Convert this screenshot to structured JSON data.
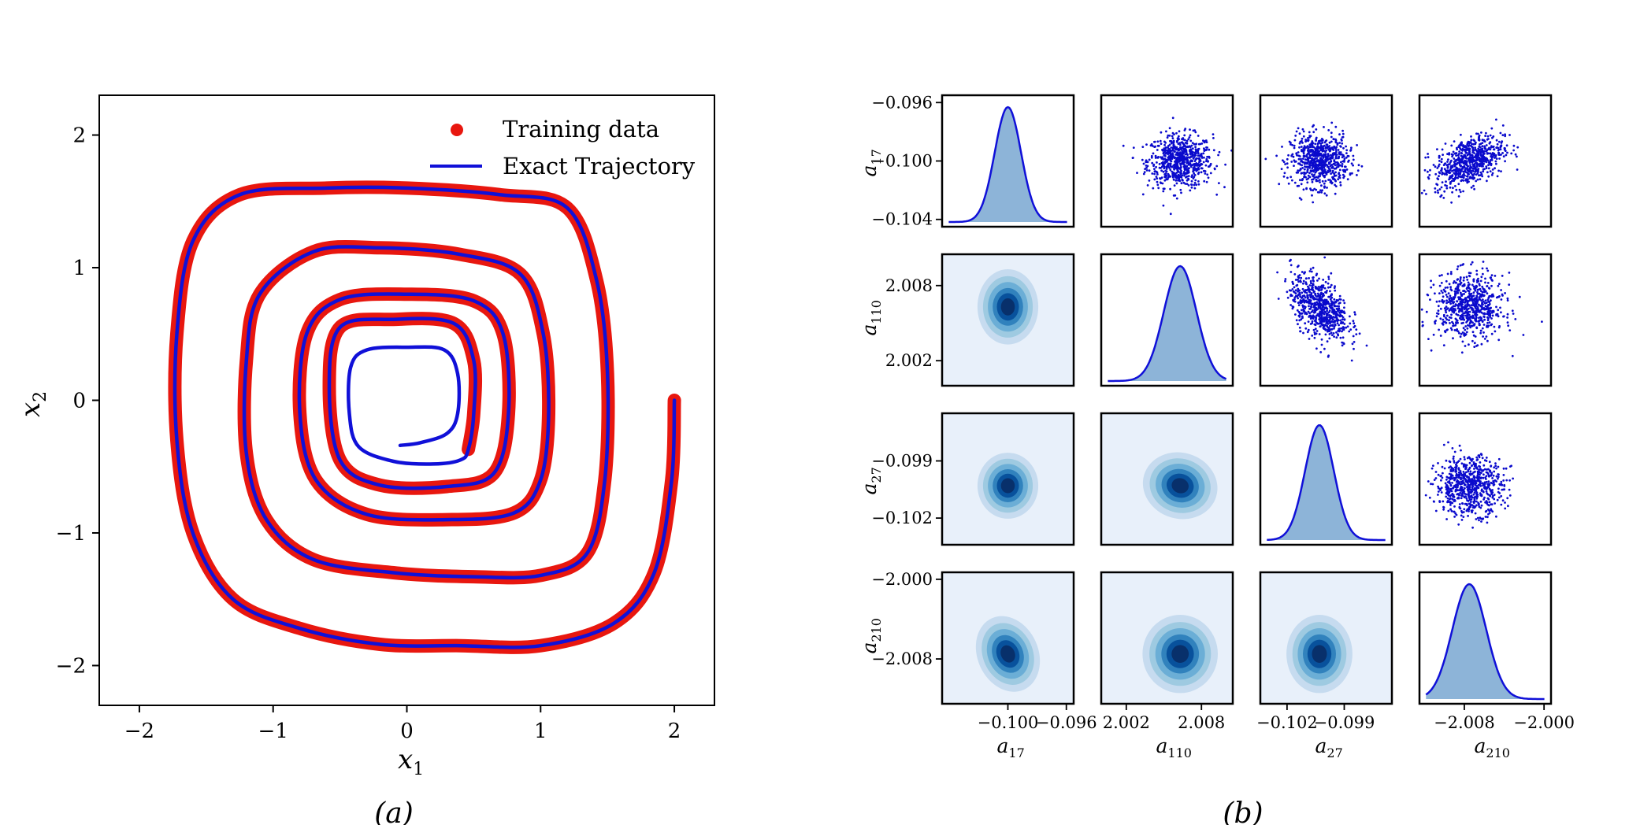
{
  "chart_data": [
    {
      "type": "line",
      "panel_label": "(a)",
      "xlabel": "x1",
      "ylabel": "x2",
      "xlim": [
        -2.3,
        2.3
      ],
      "ylim": [
        -2.3,
        2.3
      ],
      "xticks": [
        "−2",
        "−1",
        "0",
        "1",
        "2"
      ],
      "yticks": [
        "−2",
        "−1",
        "0",
        "1",
        "2"
      ],
      "xtick_values": [
        -2,
        -1,
        0,
        1,
        2
      ],
      "ytick_values": [
        -2,
        -1,
        0,
        1,
        2
      ],
      "legend_position": "top-right",
      "legend": [
        "Training data",
        "Exact Trajectory"
      ],
      "series": [
        {
          "name": "Training data",
          "color": "#e8170f",
          "marker": "circle",
          "note": "dense points along trajectory from t=0 to t≈15",
          "x": [
            2.0,
            1.98,
            1.85,
            1.55,
            1.0,
            0.4,
            -0.2,
            -0.8,
            -1.3,
            -1.6,
            -1.72,
            -1.72,
            -1.6,
            -1.25,
            -0.6,
            0.0,
            0.7,
            1.2,
            1.42,
            1.5,
            1.48,
            1.35,
            1.0,
            0.5,
            -0.1,
            -0.7,
            -1.05,
            -1.2,
            -1.2,
            -1.1,
            -0.7,
            -0.2,
            0.4,
            0.85,
            1.02,
            1.06,
            1.0,
            0.8,
            0.3,
            -0.3,
            -0.68,
            -0.8,
            -0.75,
            -0.5,
            0.0,
            0.5,
            0.72,
            0.76,
            0.65,
            0.3,
            -0.2,
            -0.5,
            -0.58,
            -0.5,
            -0.1,
            0.35,
            0.5,
            0.5,
            0.46
          ],
          "y": [
            0.0,
            -0.6,
            -1.3,
            -1.68,
            -1.85,
            -1.85,
            -1.84,
            -1.72,
            -1.5,
            -1.0,
            -0.3,
            0.5,
            1.2,
            1.55,
            1.6,
            1.6,
            1.55,
            1.45,
            0.9,
            0.2,
            -0.6,
            -1.15,
            -1.32,
            -1.33,
            -1.3,
            -1.2,
            -0.9,
            -0.4,
            0.3,
            0.8,
            1.12,
            1.15,
            1.1,
            0.95,
            0.5,
            -0.1,
            -0.6,
            -0.85,
            -0.9,
            -0.86,
            -0.6,
            -0.1,
            0.5,
            0.76,
            0.8,
            0.75,
            0.5,
            -0.1,
            -0.55,
            -0.65,
            -0.64,
            -0.45,
            0.1,
            0.55,
            0.61,
            0.58,
            0.3,
            -0.1,
            -0.37
          ]
        },
        {
          "name": "Exact Trajectory",
          "color": "#1010d8",
          "x": [
            2.0,
            1.98,
            1.85,
            1.55,
            1.0,
            0.4,
            -0.2,
            -0.8,
            -1.3,
            -1.6,
            -1.72,
            -1.72,
            -1.6,
            -1.25,
            -0.6,
            0.0,
            0.7,
            1.2,
            1.42,
            1.5,
            1.48,
            1.35,
            1.0,
            0.5,
            -0.1,
            -0.7,
            -1.05,
            -1.2,
            -1.2,
            -1.1,
            -0.7,
            -0.2,
            0.4,
            0.85,
            1.02,
            1.06,
            1.0,
            0.8,
            0.3,
            -0.3,
            -0.68,
            -0.8,
            -0.75,
            -0.5,
            0.0,
            0.5,
            0.72,
            0.76,
            0.65,
            0.3,
            -0.2,
            -0.5,
            -0.58,
            -0.5,
            -0.1,
            0.35,
            0.5,
            0.5,
            0.46,
            0.4,
            0.2,
            -0.1,
            -0.36,
            -0.43,
            -0.42,
            -0.3,
            0.0,
            0.28,
            0.38,
            0.38,
            0.3,
            0.1,
            -0.05
          ],
          "y": [
            0.0,
            -0.6,
            -1.3,
            -1.68,
            -1.85,
            -1.85,
            -1.84,
            -1.72,
            -1.5,
            -1.0,
            -0.3,
            0.5,
            1.2,
            1.55,
            1.6,
            1.6,
            1.55,
            1.45,
            0.9,
            0.2,
            -0.6,
            -1.15,
            -1.32,
            -1.33,
            -1.3,
            -1.2,
            -0.9,
            -0.4,
            0.3,
            0.8,
            1.12,
            1.15,
            1.1,
            0.95,
            0.5,
            -0.1,
            -0.6,
            -0.85,
            -0.9,
            -0.86,
            -0.6,
            -0.1,
            0.5,
            0.76,
            0.8,
            0.75,
            0.5,
            -0.1,
            -0.55,
            -0.65,
            -0.64,
            -0.45,
            0.1,
            0.55,
            0.61,
            0.58,
            0.3,
            -0.1,
            -0.37,
            -0.45,
            -0.48,
            -0.46,
            -0.35,
            -0.1,
            0.25,
            0.38,
            0.4,
            0.38,
            0.2,
            -0.1,
            -0.25,
            -0.32,
            -0.34
          ]
        }
      ]
    },
    {
      "type": "pairplot",
      "panel_label": "(b)",
      "variables": [
        "a17",
        "a110",
        "a27",
        "a210"
      ],
      "axis_labels": {
        "a17": {
          "base": "a",
          "sub": "17"
        },
        "a110": {
          "base": "a",
          "sub": "110"
        },
        "a27": {
          "base": "a",
          "sub": "27"
        },
        "a210": {
          "base": "a",
          "sub": "210"
        }
      },
      "ranges": {
        "a17": [
          -0.1045,
          -0.0955
        ],
        "a110": [
          2.0,
          2.0105
        ],
        "a27": [
          -0.1034,
          -0.0965
        ],
        "a210": [
          -2.0125,
          -1.9993
        ]
      },
      "means": {
        "a17": -0.1,
        "a110": 2.0063,
        "a27": -0.1003,
        "a210": -2.0075
      },
      "stds": {
        "a17": 0.0009,
        "a110": 0.0013,
        "a27": 0.00075,
        "a210": 0.0017
      },
      "y_ticks": [
        {
          "values": [
            -0.104,
            -0.1,
            -0.096
          ],
          "labels": [
            "−0.104",
            "−0.100",
            "−0.096"
          ]
        },
        {
          "values": [
            2.002,
            2.008
          ],
          "labels": [
            "2.002",
            "2.008"
          ]
        },
        {
          "values": [
            -0.102,
            -0.099
          ],
          "labels": [
            "−0.102",
            "−0.099"
          ]
        },
        {
          "values": [
            -2.008,
            -2.0
          ],
          "labels": [
            "−2.008",
            "−2.000"
          ]
        }
      ],
      "x_ticks": [
        {
          "values": [
            -0.1,
            -0.096
          ],
          "labels": [
            "−0.100",
            "−0.096"
          ]
        },
        {
          "values": [
            2.002,
            2.008
          ],
          "labels": [
            "2.002",
            "2.008"
          ]
        },
        {
          "values": [
            -0.102,
            -0.099
          ],
          "labels": [
            "−0.102",
            "−0.099"
          ]
        },
        {
          "values": [
            -2.008,
            -2.0
          ],
          "labels": [
            "−2.008",
            "−2.000"
          ]
        }
      ],
      "correlations": [
        [
          1.0,
          0.0,
          0.0,
          0.45
        ],
        [
          0.0,
          1.0,
          -0.45,
          0.0
        ],
        [
          0.0,
          -0.45,
          1.0,
          0.0
        ],
        [
          0.45,
          0.0,
          0.0,
          1.0
        ]
      ],
      "scatter_color": "#0a0acc",
      "kde_fill": "#8db4d8",
      "kde_line": "#1010d8",
      "density_colors": [
        "#e8f0fa",
        "#c6dbef",
        "#9ecae1",
        "#6baed6",
        "#3182bd",
        "#08519c",
        "#08306b"
      ]
    }
  ]
}
